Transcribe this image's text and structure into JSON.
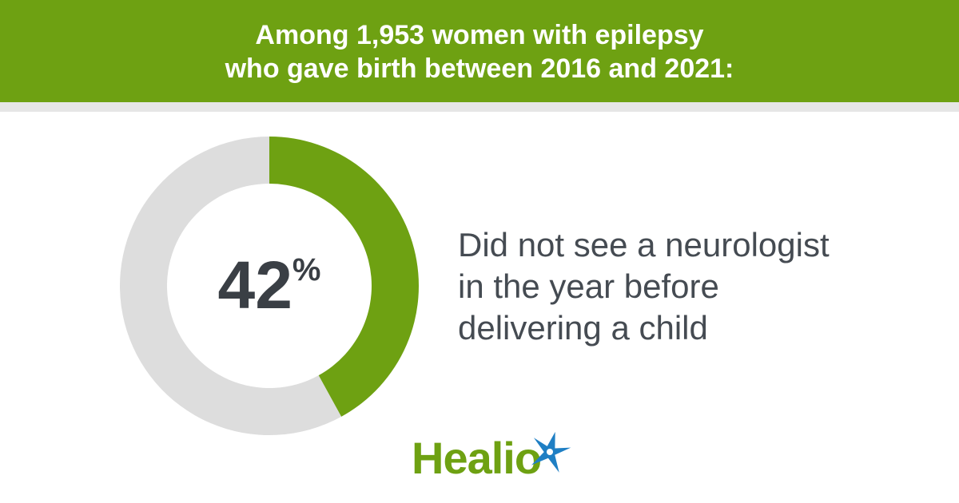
{
  "chart_data": {
    "type": "donut",
    "title": [
      "Among 1,953 women with epilepsy",
      "who gave birth between 2016 and 2021:"
    ],
    "values": [
      42,
      58
    ],
    "value_labels": [
      "42%",
      null
    ],
    "colors": [
      "#6ea112",
      "#dddddd"
    ],
    "annotation": [
      "Did not see a neurologist",
      "in the year before",
      "delivering a child"
    ]
  },
  "logo": "Healio"
}
